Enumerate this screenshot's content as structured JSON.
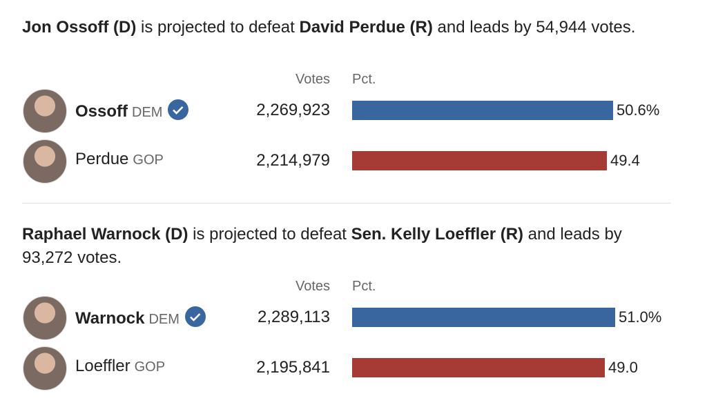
{
  "races": [
    {
      "headline": [
        {
          "text": "Jon Ossoff (D)",
          "bold": true
        },
        {
          "text": " is projected to defeat ",
          "bold": false
        },
        {
          "text": "David Perdue (R)",
          "bold": true
        },
        {
          "text": " and leads by 54,944 votes.",
          "bold": false
        }
      ],
      "votes_header": "Votes",
      "pct_header": "Pct.",
      "candidates": [
        {
          "name": "Ossoff",
          "party": "DEM",
          "winner": true,
          "votes": "2,269,923",
          "pct": 50.6,
          "pct_label": "50.6%",
          "color": "#3a669f"
        },
        {
          "name": "Perdue",
          "party": "GOP",
          "winner": false,
          "votes": "2,214,979",
          "pct": 49.4,
          "pct_label": "49.4",
          "color": "#a63a35"
        }
      ]
    },
    {
      "headline": [
        {
          "text": "Raphael Warnock (D)",
          "bold": true
        },
        {
          "text": " is projected to defeat ",
          "bold": false
        },
        {
          "text": "Sen. Kelly Loeffler (R)",
          "bold": true
        },
        {
          "text": " and leads by 93,272 votes.",
          "bold": false
        }
      ],
      "votes_header": "Votes",
      "pct_header": "Pct.",
      "candidates": [
        {
          "name": "Warnock",
          "party": "DEM",
          "winner": true,
          "votes": "2,289,113",
          "pct": 51.0,
          "pct_label": "51.0%",
          "color": "#3a669f"
        },
        {
          "name": "Loeffler",
          "party": "GOP",
          "winner": false,
          "votes": "2,195,841",
          "pct": 49.0,
          "pct_label": "49.0",
          "color": "#a63a35"
        }
      ]
    }
  ]
}
